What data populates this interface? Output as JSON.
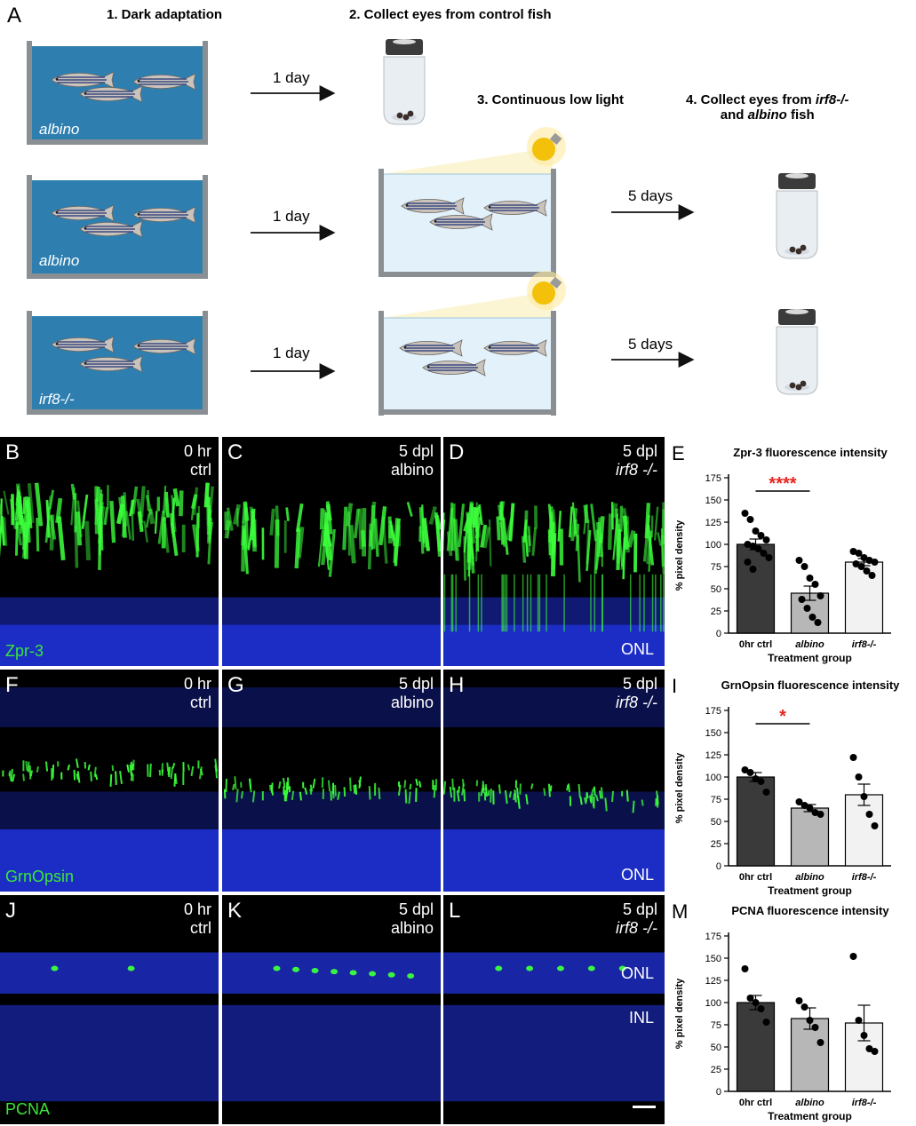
{
  "panel_a": {
    "letter": "A",
    "step1": "1. Dark adaptation",
    "step2": "2. Collect eyes from control fish",
    "step3": "3. Continuous low light",
    "step4_line1_pre": "4. Collect eyes from ",
    "step4_line1_em": "irf8-/-",
    "step4_line2_pre": "and ",
    "step4_line2_em": "albino",
    "step4_line2_post": " fish",
    "tank_labels": [
      "albino",
      "albino",
      "irf8-/-"
    ],
    "arrow_1day": "1 day",
    "arrow_5days": "5 days"
  },
  "micrographs": {
    "rows": [
      {
        "stain": "Zpr-3",
        "letters": [
          "B",
          "C",
          "D"
        ],
        "onl_label": "ONL"
      },
      {
        "stain": "GrnOpsin",
        "letters": [
          "F",
          "G",
          "H"
        ],
        "onl_label": "ONL"
      },
      {
        "stain": "PCNA",
        "letters": [
          "J",
          "K",
          "L"
        ],
        "onl_label": "ONL",
        "inl_label": "INL"
      }
    ],
    "conditions": [
      {
        "line1": "0 hr",
        "line2": "ctrl"
      },
      {
        "line1": "5 dpl",
        "line2": "albino"
      },
      {
        "line1": "5 dpl",
        "line2": "irf8 -/-"
      }
    ],
    "colors": {
      "nuclei": "#1e2fd0",
      "stain": "#3cff3c",
      "background": "#000000"
    }
  },
  "chart_data": [
    {
      "letter": "E",
      "type": "bar",
      "title": "Zpr-3 fluorescence intensity",
      "xlabel": "Treatment group",
      "ylabel": "% pixel density",
      "ylim": [
        0,
        175
      ],
      "yticks": [
        0,
        25,
        50,
        75,
        100,
        125,
        150,
        175
      ],
      "categories": [
        "0hr ctrl",
        "albino",
        "irf8-/-"
      ],
      "values": [
        100,
        45,
        80
      ],
      "errors": [
        6,
        8,
        4
      ],
      "points": [
        [
          135,
          128,
          115,
          110,
          105,
          100,
          98,
          95,
          90,
          85,
          80,
          72
        ],
        [
          82,
          75,
          62,
          55,
          42,
          38,
          28,
          18,
          12
        ],
        [
          92,
          90,
          85,
          82,
          80,
          78,
          75,
          70,
          65
        ]
      ],
      "significance": {
        "pair": [
          0,
          1
        ],
        "label": "****",
        "color": "#e8251f"
      },
      "bar_colors": [
        "#3a3a3a",
        "#b7b7b7",
        "#f2f2f2"
      ]
    },
    {
      "letter": "I",
      "type": "bar",
      "title": "GrnOpsin fluorescence intensity",
      "xlabel": "Treatment group",
      "ylabel": "% pixel density",
      "ylim": [
        0,
        175
      ],
      "yticks": [
        0,
        25,
        50,
        75,
        100,
        125,
        150,
        175
      ],
      "categories": [
        "0hr ctrl",
        "albino",
        "irf8-/-"
      ],
      "values": [
        100,
        65,
        80
      ],
      "errors": [
        5,
        4,
        12
      ],
      "points": [
        [
          108,
          105,
          98,
          95,
          83
        ],
        [
          72,
          68,
          65,
          60,
          58
        ],
        [
          122,
          100,
          78,
          58,
          45
        ]
      ],
      "significance": {
        "pair": [
          0,
          1
        ],
        "label": "*",
        "color": "#e8251f"
      },
      "bar_colors": [
        "#3a3a3a",
        "#b7b7b7",
        "#f2f2f2"
      ]
    },
    {
      "letter": "M",
      "type": "bar",
      "title": "PCNA fluorescence intensity",
      "xlabel": "Treatment group",
      "ylabel": "% pixel density",
      "ylim": [
        0,
        175
      ],
      "yticks": [
        0,
        25,
        50,
        75,
        100,
        125,
        150,
        175
      ],
      "categories": [
        "0hr ctrl",
        "albino",
        "irf8-/-"
      ],
      "values": [
        100,
        82,
        77
      ],
      "errors": [
        8,
        12,
        20
      ],
      "points": [
        [
          138,
          105,
          100,
          93,
          78
        ],
        [
          102,
          95,
          80,
          72,
          55
        ],
        [
          152,
          80,
          63,
          48,
          45
        ]
      ],
      "significance": null,
      "bar_colors": [
        "#3a3a3a",
        "#b7b7b7",
        "#f2f2f2"
      ]
    }
  ]
}
